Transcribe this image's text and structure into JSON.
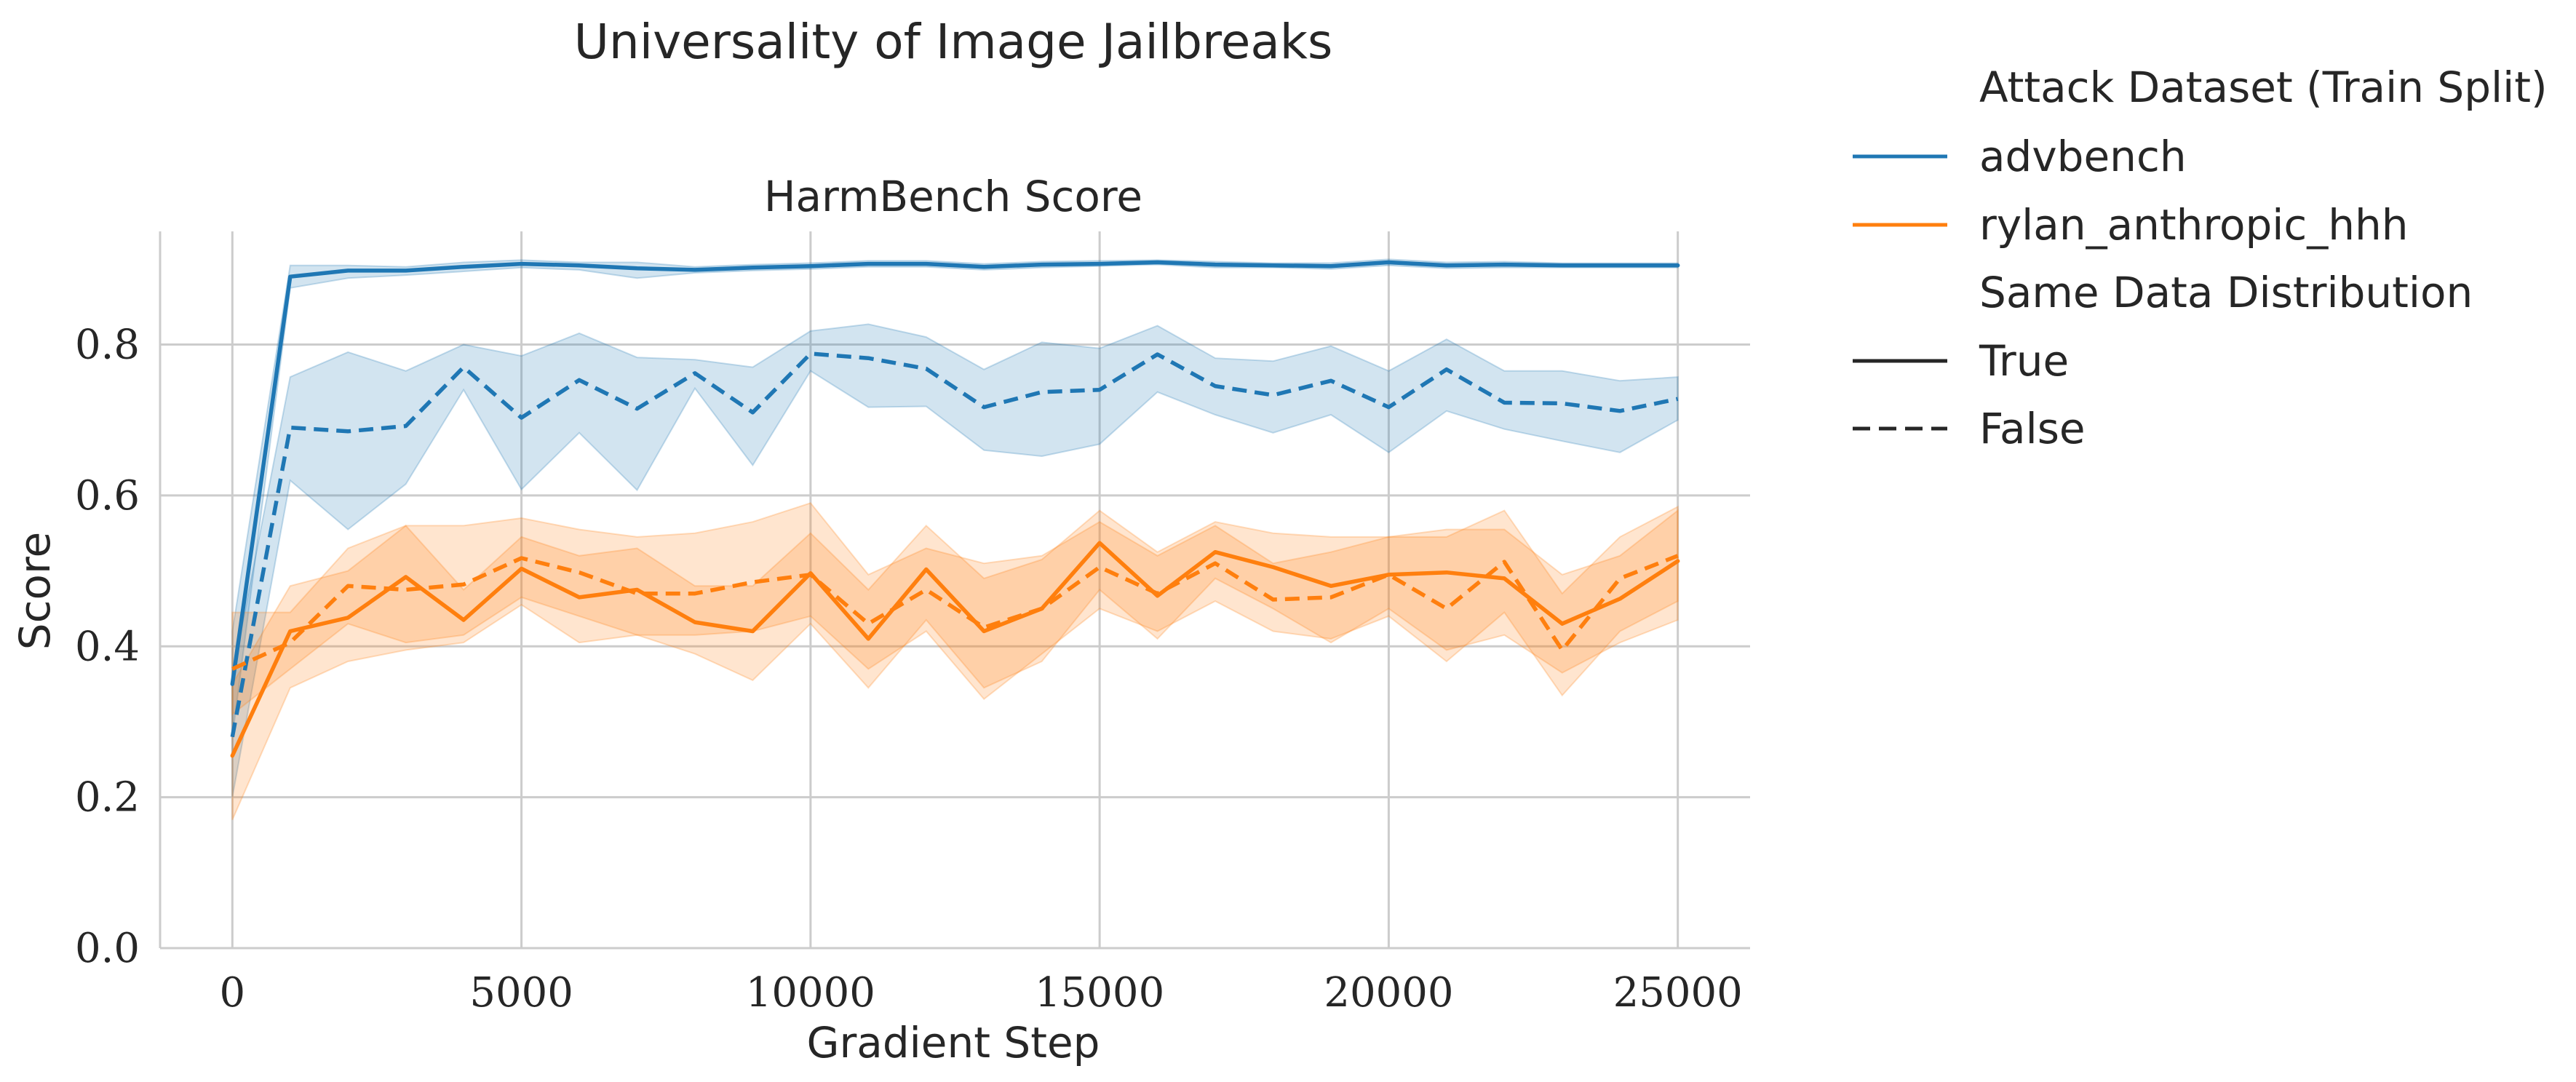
{
  "figure": {
    "title": "Universality of Image Jailbreaks"
  },
  "legend": {
    "hue_title": "Attack Dataset (Train Split)",
    "style_title": "Same Data Distribution",
    "style_true": "True",
    "style_false": "False",
    "placement": "outside-right"
  },
  "colors": {
    "advbench": "#1f77b4",
    "rylan_anthropic_hhh": "#ff7f0e",
    "grid": "#cccccc",
    "text": "#262626"
  },
  "chart_data": {
    "type": "line",
    "title": "HarmBench Score",
    "xlabel": "Gradient Step",
    "ylabel": "Score",
    "xlim": [
      -1250,
      26250
    ],
    "ylim": [
      0,
      0.95
    ],
    "xticks": [
      0,
      5000,
      10000,
      15000,
      20000,
      25000
    ],
    "xtick_labels": [
      "0",
      "5000",
      "10000",
      "15000",
      "20000",
      "25000"
    ],
    "yticks": [
      0.0,
      0.2,
      0.4,
      0.6,
      0.8
    ],
    "ytick_labels": [
      "0.0",
      "0.2",
      "0.4",
      "0.6",
      "0.8"
    ],
    "grid": true,
    "x": [
      0,
      1000,
      2000,
      3000,
      4000,
      5000,
      6000,
      7000,
      8000,
      9000,
      10000,
      11000,
      12000,
      13000,
      14000,
      15000,
      16000,
      17000,
      18000,
      19000,
      20000,
      21000,
      22000,
      23000,
      24000,
      25000
    ],
    "series": [
      {
        "name": "advbench",
        "same_distribution": "True",
        "color": "#1f77b4",
        "dash": "solid",
        "values": [
          0.35,
          0.89,
          0.898,
          0.898,
          0.903,
          0.907,
          0.905,
          0.901,
          0.899,
          0.902,
          0.904,
          0.907,
          0.907,
          0.903,
          0.906,
          0.907,
          0.909,
          0.906,
          0.905,
          0.904,
          0.909,
          0.905,
          0.906,
          0.905,
          0.905,
          0.905
        ],
        "ci_low": [
          0.28,
          0.875,
          0.888,
          0.892,
          0.897,
          0.902,
          0.899,
          0.888,
          0.895,
          0.898,
          0.9,
          0.903,
          0.903,
          0.899,
          0.902,
          0.904,
          0.906,
          0.902,
          0.902,
          0.9,
          0.905,
          0.901,
          0.902,
          0.902,
          0.902,
          0.902
        ],
        "ci_high": [
          0.42,
          0.905,
          0.905,
          0.903,
          0.909,
          0.912,
          0.909,
          0.909,
          0.903,
          0.906,
          0.908,
          0.911,
          0.911,
          0.907,
          0.91,
          0.911,
          0.912,
          0.91,
          0.908,
          0.908,
          0.913,
          0.909,
          0.91,
          0.908,
          0.908,
          0.908
        ]
      },
      {
        "name": "advbench",
        "same_distribution": "False",
        "color": "#1f77b4",
        "dash": "dashed",
        "values": [
          0.28,
          0.69,
          0.685,
          0.692,
          0.77,
          0.703,
          0.753,
          0.715,
          0.762,
          0.71,
          0.788,
          0.782,
          0.768,
          0.717,
          0.737,
          0.74,
          0.787,
          0.745,
          0.733,
          0.752,
          0.717,
          0.767,
          0.723,
          0.722,
          0.712,
          0.728
        ],
        "ci_low": [
          0.2,
          0.62,
          0.555,
          0.615,
          0.74,
          0.608,
          0.683,
          0.607,
          0.742,
          0.64,
          0.765,
          0.717,
          0.718,
          0.66,
          0.652,
          0.668,
          0.737,
          0.707,
          0.683,
          0.707,
          0.657,
          0.712,
          0.688,
          0.672,
          0.657,
          0.7
        ],
        "ci_high": [
          0.36,
          0.757,
          0.79,
          0.765,
          0.8,
          0.785,
          0.815,
          0.783,
          0.78,
          0.77,
          0.818,
          0.827,
          0.81,
          0.767,
          0.803,
          0.795,
          0.825,
          0.782,
          0.778,
          0.798,
          0.765,
          0.807,
          0.765,
          0.765,
          0.752,
          0.757
        ]
      },
      {
        "name": "rylan_anthropic_hhh",
        "same_distribution": "True",
        "color": "#ff7f0e",
        "dash": "solid",
        "values": [
          0.255,
          0.42,
          0.438,
          0.492,
          0.435,
          0.503,
          0.465,
          0.475,
          0.432,
          0.42,
          0.497,
          0.41,
          0.502,
          0.42,
          0.45,
          0.537,
          0.467,
          0.525,
          0.505,
          0.48,
          0.495,
          0.498,
          0.49,
          0.43,
          0.463,
          0.513
        ],
        "ci_low": [
          0.17,
          0.345,
          0.38,
          0.395,
          0.405,
          0.455,
          0.405,
          0.415,
          0.39,
          0.355,
          0.43,
          0.345,
          0.435,
          0.345,
          0.38,
          0.475,
          0.41,
          0.49,
          0.45,
          0.405,
          0.45,
          0.395,
          0.415,
          0.365,
          0.405,
          0.435
        ],
        "ci_high": [
          0.35,
          0.48,
          0.5,
          0.56,
          0.475,
          0.545,
          0.52,
          0.53,
          0.48,
          0.48,
          0.55,
          0.475,
          0.56,
          0.49,
          0.515,
          0.58,
          0.525,
          0.565,
          0.55,
          0.545,
          0.545,
          0.555,
          0.555,
          0.495,
          0.52,
          0.58
        ]
      },
      {
        "name": "rylan_anthropic_hhh",
        "same_distribution": "False",
        "color": "#ff7f0e",
        "dash": "dashed",
        "values": [
          0.37,
          0.405,
          0.48,
          0.475,
          0.482,
          0.517,
          0.498,
          0.47,
          0.47,
          0.485,
          0.495,
          0.43,
          0.475,
          0.425,
          0.45,
          0.505,
          0.47,
          0.51,
          0.462,
          0.465,
          0.495,
          0.45,
          0.512,
          0.395,
          0.49,
          0.52
        ],
        "ci_low": [
          0.31,
          0.37,
          0.43,
          0.405,
          0.415,
          0.465,
          0.44,
          0.415,
          0.415,
          0.42,
          0.44,
          0.37,
          0.42,
          0.33,
          0.39,
          0.45,
          0.42,
          0.46,
          0.42,
          0.41,
          0.44,
          0.38,
          0.445,
          0.335,
          0.42,
          0.46
        ],
        "ci_high": [
          0.445,
          0.445,
          0.53,
          0.56,
          0.56,
          0.57,
          0.555,
          0.545,
          0.55,
          0.565,
          0.59,
          0.495,
          0.53,
          0.51,
          0.52,
          0.565,
          0.52,
          0.56,
          0.51,
          0.525,
          0.545,
          0.545,
          0.58,
          0.47,
          0.545,
          0.585
        ]
      }
    ]
  }
}
